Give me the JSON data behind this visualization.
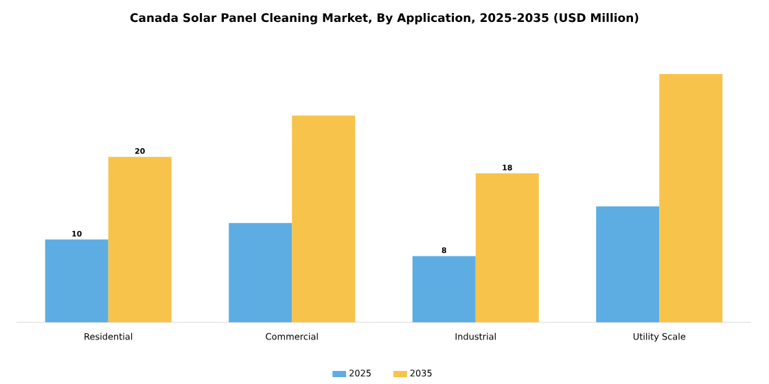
{
  "chart_data": {
    "type": "bar",
    "title": "Canada Solar Panel Cleaning Market, By Application, 2025-2035 (USD Million)",
    "categories": [
      "Residential",
      "Commercial",
      "Industrial",
      "Utility Scale"
    ],
    "series": [
      {
        "name": "2025",
        "color": "#5dade2",
        "values": [
          10,
          12,
          8,
          14
        ],
        "value_labels": [
          "10",
          null,
          "8",
          null
        ]
      },
      {
        "name": "2035",
        "color": "#f7c34a",
        "values": [
          20,
          25,
          18,
          30
        ],
        "value_labels": [
          "20",
          null,
          "18",
          null
        ]
      }
    ],
    "legend": "bottom"
  }
}
